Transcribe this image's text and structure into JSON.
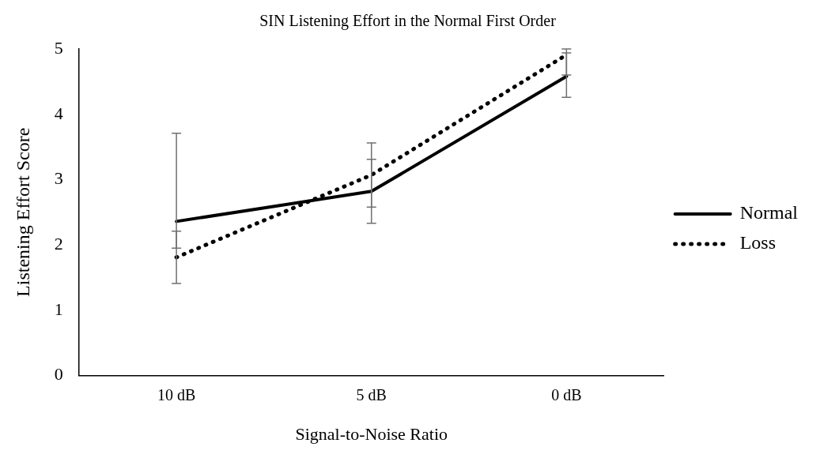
{
  "chart_data": {
    "type": "line",
    "title": "SIN Listening Effort in the Normal First Order",
    "xlabel": "Signal-to-Noise Ratio",
    "ylabel": "Listening Effort Score",
    "categories": [
      "10 dB",
      "5 dB",
      "0 dB"
    ],
    "series": [
      {
        "name": "Normal",
        "color": "#000000",
        "line_style": "solid",
        "values": [
          2.36,
          2.82,
          4.58
        ],
        "errors": [
          [
            1.95,
            3.71
          ],
          0.49,
          [
            4.26,
            4.94
          ]
        ]
      },
      {
        "name": "Loss",
        "color": "#000000",
        "line_style": "dotted",
        "values": [
          1.81,
          3.07,
          4.91
        ],
        "errors": [
          0.4,
          0.49,
          [
            4.6,
            5
          ]
        ]
      }
    ],
    "ylim": [
      0,
      5
    ],
    "yticks": [
      0,
      1,
      2,
      3,
      4,
      5
    ],
    "grid": false,
    "legend": "right",
    "marker": "none"
  }
}
